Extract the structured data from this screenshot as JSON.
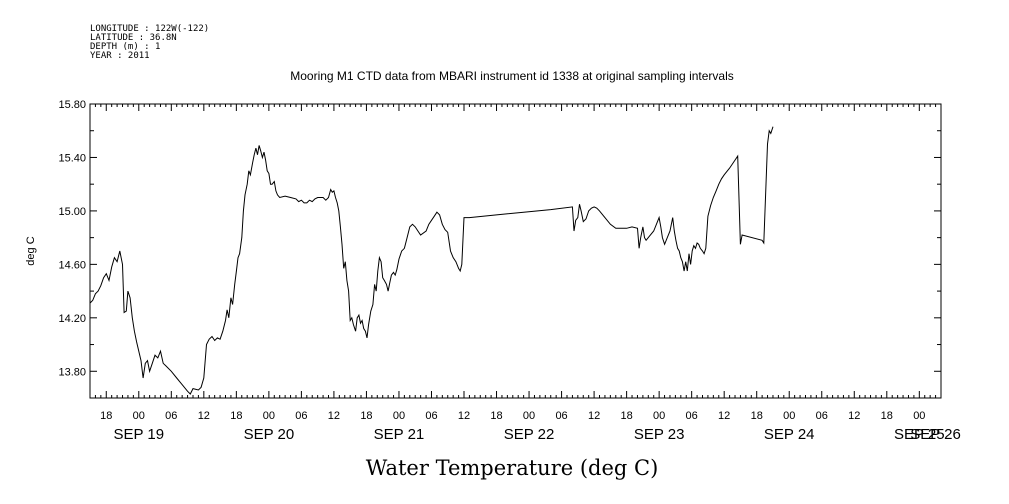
{
  "meta": [
    "LONGITUDE : 122W(-122)",
    "LATITUDE : 36.8N",
    "DEPTH (m) : 1",
    "YEAR : 2011"
  ],
  "chart_data": {
    "type": "line",
    "title": "Mooring M1 CTD data from MBARI instrument id 1338 at original sampling intervals",
    "ylabel": "deg C",
    "xlabel": "Water Temperature (deg C)",
    "x_unit": "hours since SEP 19 00:00 (2011)",
    "xlim": [
      15,
      172
    ],
    "ylim": [
      13.6,
      15.8
    ],
    "yticks": [
      13.8,
      14.2,
      14.6,
      15.0,
      15.4,
      15.8
    ],
    "ytick_labels": [
      "13.80",
      "14.20",
      "14.60",
      "15.00",
      "15.40",
      "15.80"
    ],
    "xtick_hours": [
      18,
      24,
      30,
      36,
      42,
      48,
      54,
      60,
      66,
      72,
      78,
      84,
      90,
      96,
      102,
      108,
      114,
      120,
      126,
      132,
      138,
      144,
      150,
      156,
      162,
      168
    ],
    "xtick_labels": [
      "18",
      "00",
      "06",
      "12",
      "18",
      "00",
      "06",
      "12",
      "18",
      "00",
      "06",
      "12",
      "18",
      "00",
      "06",
      "12",
      "18",
      "00",
      "06",
      "12",
      "18",
      "00",
      "06",
      "12",
      "18",
      "00"
    ],
    "day_labels": [
      {
        "hour": 24,
        "label": "SEP 19"
      },
      {
        "hour": 48,
        "label": "SEP 20"
      },
      {
        "hour": 72,
        "label": "SEP 21"
      },
      {
        "hour": 96,
        "label": "SEP 22"
      },
      {
        "hour": 120,
        "label": "SEP 23"
      },
      {
        "hour": 144,
        "label": "SEP 24"
      },
      {
        "hour": 168,
        "label": "SEP 25"
      },
      {
        "hour": 171,
        "label": "SEP 26"
      }
    ],
    "series": [
      {
        "color": "#000000",
        "points": [
          [
            15.0,
            14.31
          ],
          [
            15.5,
            14.33
          ],
          [
            16.0,
            14.38
          ],
          [
            16.5,
            14.4
          ],
          [
            17.0,
            14.44
          ],
          [
            17.5,
            14.5
          ],
          [
            18.0,
            14.53
          ],
          [
            18.5,
            14.48
          ],
          [
            19.0,
            14.58
          ],
          [
            19.5,
            14.65
          ],
          [
            20.0,
            14.62
          ],
          [
            20.5,
            14.7
          ],
          [
            21.0,
            14.6
          ],
          [
            21.3,
            14.24
          ],
          [
            21.7,
            14.25
          ],
          [
            22.0,
            14.4
          ],
          [
            22.4,
            14.35
          ],
          [
            22.8,
            14.2
          ],
          [
            23.2,
            14.1
          ],
          [
            23.6,
            14.02
          ],
          [
            24.0,
            13.95
          ],
          [
            24.4,
            13.88
          ],
          [
            24.8,
            13.75
          ],
          [
            25.2,
            13.86
          ],
          [
            25.6,
            13.88
          ],
          [
            26.0,
            13.8
          ],
          [
            26.5,
            13.86
          ],
          [
            27.0,
            13.92
          ],
          [
            27.5,
            13.9
          ],
          [
            28.0,
            13.95
          ],
          [
            28.5,
            13.86
          ],
          [
            29.0,
            13.84
          ],
          [
            30.0,
            13.8
          ],
          [
            31.0,
            13.75
          ],
          [
            32.0,
            13.7
          ],
          [
            33.0,
            13.65
          ],
          [
            33.5,
            13.63
          ],
          [
            34.0,
            13.67
          ],
          [
            35.0,
            13.66
          ],
          [
            35.5,
            13.68
          ],
          [
            36.0,
            13.75
          ],
          [
            36.5,
            14.0
          ],
          [
            37.0,
            14.04
          ],
          [
            37.5,
            14.06
          ],
          [
            38.0,
            14.03
          ],
          [
            38.5,
            14.05
          ],
          [
            39.0,
            14.04
          ],
          [
            39.5,
            14.1
          ],
          [
            40.0,
            14.18
          ],
          [
            40.3,
            14.26
          ],
          [
            40.6,
            14.2
          ],
          [
            41.0,
            14.35
          ],
          [
            41.3,
            14.3
          ],
          [
            41.7,
            14.45
          ],
          [
            42.0,
            14.55
          ],
          [
            42.3,
            14.65
          ],
          [
            42.6,
            14.68
          ],
          [
            43.0,
            14.8
          ],
          [
            43.3,
            15.0
          ],
          [
            43.6,
            15.12
          ],
          [
            44.0,
            15.2
          ],
          [
            44.3,
            15.3
          ],
          [
            44.6,
            15.27
          ],
          [
            45.0,
            15.36
          ],
          [
            45.3,
            15.42
          ],
          [
            45.6,
            15.47
          ],
          [
            45.9,
            15.42
          ],
          [
            46.2,
            15.49
          ],
          [
            46.5,
            15.45
          ],
          [
            46.8,
            15.4
          ],
          [
            47.1,
            15.44
          ],
          [
            47.4,
            15.38
          ],
          [
            47.7,
            15.3
          ],
          [
            48.0,
            15.28
          ],
          [
            48.3,
            15.2
          ],
          [
            48.6,
            15.2
          ],
          [
            49.0,
            15.22
          ],
          [
            49.3,
            15.15
          ],
          [
            49.6,
            15.12
          ],
          [
            50.0,
            15.1
          ],
          [
            51.0,
            15.11
          ],
          [
            52.0,
            15.1
          ],
          [
            53.0,
            15.09
          ],
          [
            53.5,
            15.07
          ],
          [
            54.0,
            15.08
          ],
          [
            54.5,
            15.06
          ],
          [
            55.0,
            15.06
          ],
          [
            55.5,
            15.08
          ],
          [
            56.0,
            15.07
          ],
          [
            56.5,
            15.09
          ],
          [
            57.0,
            15.1
          ],
          [
            58.0,
            15.1
          ],
          [
            58.5,
            15.08
          ],
          [
            59.0,
            15.1
          ],
          [
            59.4,
            15.16
          ],
          [
            59.7,
            15.14
          ],
          [
            60.0,
            15.15
          ],
          [
            60.3,
            15.1
          ],
          [
            60.6,
            15.06
          ],
          [
            60.9,
            15.0
          ],
          [
            61.2,
            14.88
          ],
          [
            61.5,
            14.75
          ],
          [
            61.8,
            14.57
          ],
          [
            62.1,
            14.62
          ],
          [
            62.4,
            14.48
          ],
          [
            62.7,
            14.4
          ],
          [
            63.0,
            14.18
          ],
          [
            63.3,
            14.2
          ],
          [
            63.6,
            14.15
          ],
          [
            64.0,
            14.1
          ],
          [
            64.3,
            14.2
          ],
          [
            64.6,
            14.22
          ],
          [
            64.9,
            14.16
          ],
          [
            65.2,
            14.18
          ],
          [
            65.5,
            14.12
          ],
          [
            65.8,
            14.1
          ],
          [
            66.1,
            14.05
          ],
          [
            66.4,
            14.15
          ],
          [
            66.8,
            14.25
          ],
          [
            67.2,
            14.3
          ],
          [
            67.5,
            14.45
          ],
          [
            67.8,
            14.4
          ],
          [
            68.1,
            14.55
          ],
          [
            68.4,
            14.65
          ],
          [
            68.7,
            14.62
          ],
          [
            69.0,
            14.5
          ],
          [
            69.3,
            14.48
          ],
          [
            69.7,
            14.45
          ],
          [
            70.0,
            14.4
          ],
          [
            70.3,
            14.46
          ],
          [
            70.6,
            14.52
          ],
          [
            71.0,
            14.54
          ],
          [
            71.3,
            14.52
          ],
          [
            71.6,
            14.56
          ],
          [
            72.0,
            14.64
          ],
          [
            72.5,
            14.7
          ],
          [
            73.0,
            14.72
          ],
          [
            73.5,
            14.8
          ],
          [
            74.0,
            14.88
          ],
          [
            74.5,
            14.9
          ],
          [
            75.0,
            14.88
          ],
          [
            75.5,
            14.85
          ],
          [
            76.0,
            14.82
          ],
          [
            77.0,
            14.85
          ],
          [
            77.5,
            14.9
          ],
          [
            78.0,
            14.93
          ],
          [
            78.5,
            14.96
          ],
          [
            79.0,
            14.99
          ],
          [
            79.5,
            14.97
          ],
          [
            80.0,
            14.9
          ],
          [
            80.5,
            14.86
          ],
          [
            81.0,
            14.84
          ],
          [
            81.5,
            14.7
          ],
          [
            82.0,
            14.65
          ],
          [
            82.5,
            14.62
          ],
          [
            83.0,
            14.57
          ],
          [
            83.3,
            14.55
          ],
          [
            83.6,
            14.6
          ],
          [
            84.0,
            14.95
          ],
          [
            85.0,
            14.95
          ],
          [
            90.0,
            14.97
          ],
          [
            95.0,
            14.99
          ],
          [
            100.0,
            15.01
          ],
          [
            104.0,
            15.03
          ],
          [
            104.3,
            14.85
          ],
          [
            104.6,
            14.93
          ],
          [
            105.0,
            14.95
          ],
          [
            105.3,
            15.05
          ],
          [
            105.6,
            15.0
          ],
          [
            106.0,
            14.92
          ],
          [
            106.5,
            14.94
          ],
          [
            107.0,
            15.0
          ],
          [
            107.5,
            15.02
          ],
          [
            108.0,
            15.03
          ],
          [
            108.5,
            15.02
          ],
          [
            109.0,
            15.0
          ],
          [
            110.0,
            14.95
          ],
          [
            111.0,
            14.9
          ],
          [
            112.0,
            14.87
          ],
          [
            114.0,
            14.87
          ],
          [
            115.0,
            14.88
          ],
          [
            116.0,
            14.87
          ],
          [
            116.3,
            14.72
          ],
          [
            116.6,
            14.8
          ],
          [
            117.0,
            14.88
          ],
          [
            117.3,
            14.8
          ],
          [
            117.6,
            14.78
          ],
          [
            118.0,
            14.8
          ],
          [
            119.0,
            14.85
          ],
          [
            119.5,
            14.9
          ],
          [
            120.0,
            14.95
          ],
          [
            120.3,
            14.88
          ],
          [
            120.6,
            14.8
          ],
          [
            121.0,
            14.75
          ],
          [
            121.5,
            14.8
          ],
          [
            122.0,
            14.85
          ],
          [
            122.5,
            14.95
          ],
          [
            122.8,
            14.85
          ],
          [
            123.1,
            14.78
          ],
          [
            123.4,
            14.72
          ],
          [
            123.7,
            14.7
          ],
          [
            124.0,
            14.65
          ],
          [
            124.3,
            14.62
          ],
          [
            124.6,
            14.55
          ],
          [
            124.9,
            14.62
          ],
          [
            125.2,
            14.55
          ],
          [
            125.5,
            14.68
          ],
          [
            125.8,
            14.6
          ],
          [
            126.1,
            14.7
          ],
          [
            126.4,
            14.74
          ],
          [
            126.7,
            14.72
          ],
          [
            127.0,
            14.76
          ],
          [
            127.3,
            14.75
          ],
          [
            127.6,
            14.72
          ],
          [
            128.0,
            14.7
          ],
          [
            128.3,
            14.68
          ],
          [
            128.6,
            14.72
          ],
          [
            129.0,
            14.96
          ],
          [
            129.5,
            15.04
          ],
          [
            130.0,
            15.1
          ],
          [
            130.5,
            15.15
          ],
          [
            131.0,
            15.2
          ],
          [
            131.5,
            15.24
          ],
          [
            132.0,
            15.27
          ],
          [
            133.0,
            15.32
          ],
          [
            134.0,
            15.38
          ],
          [
            134.5,
            15.41
          ],
          [
            135.0,
            14.75
          ],
          [
            135.3,
            14.82
          ],
          [
            139.0,
            14.78
          ],
          [
            139.3,
            14.76
          ],
          [
            140.0,
            15.5
          ],
          [
            140.3,
            15.6
          ],
          [
            140.6,
            15.58
          ],
          [
            141.0,
            15.63
          ]
        ]
      }
    ]
  }
}
